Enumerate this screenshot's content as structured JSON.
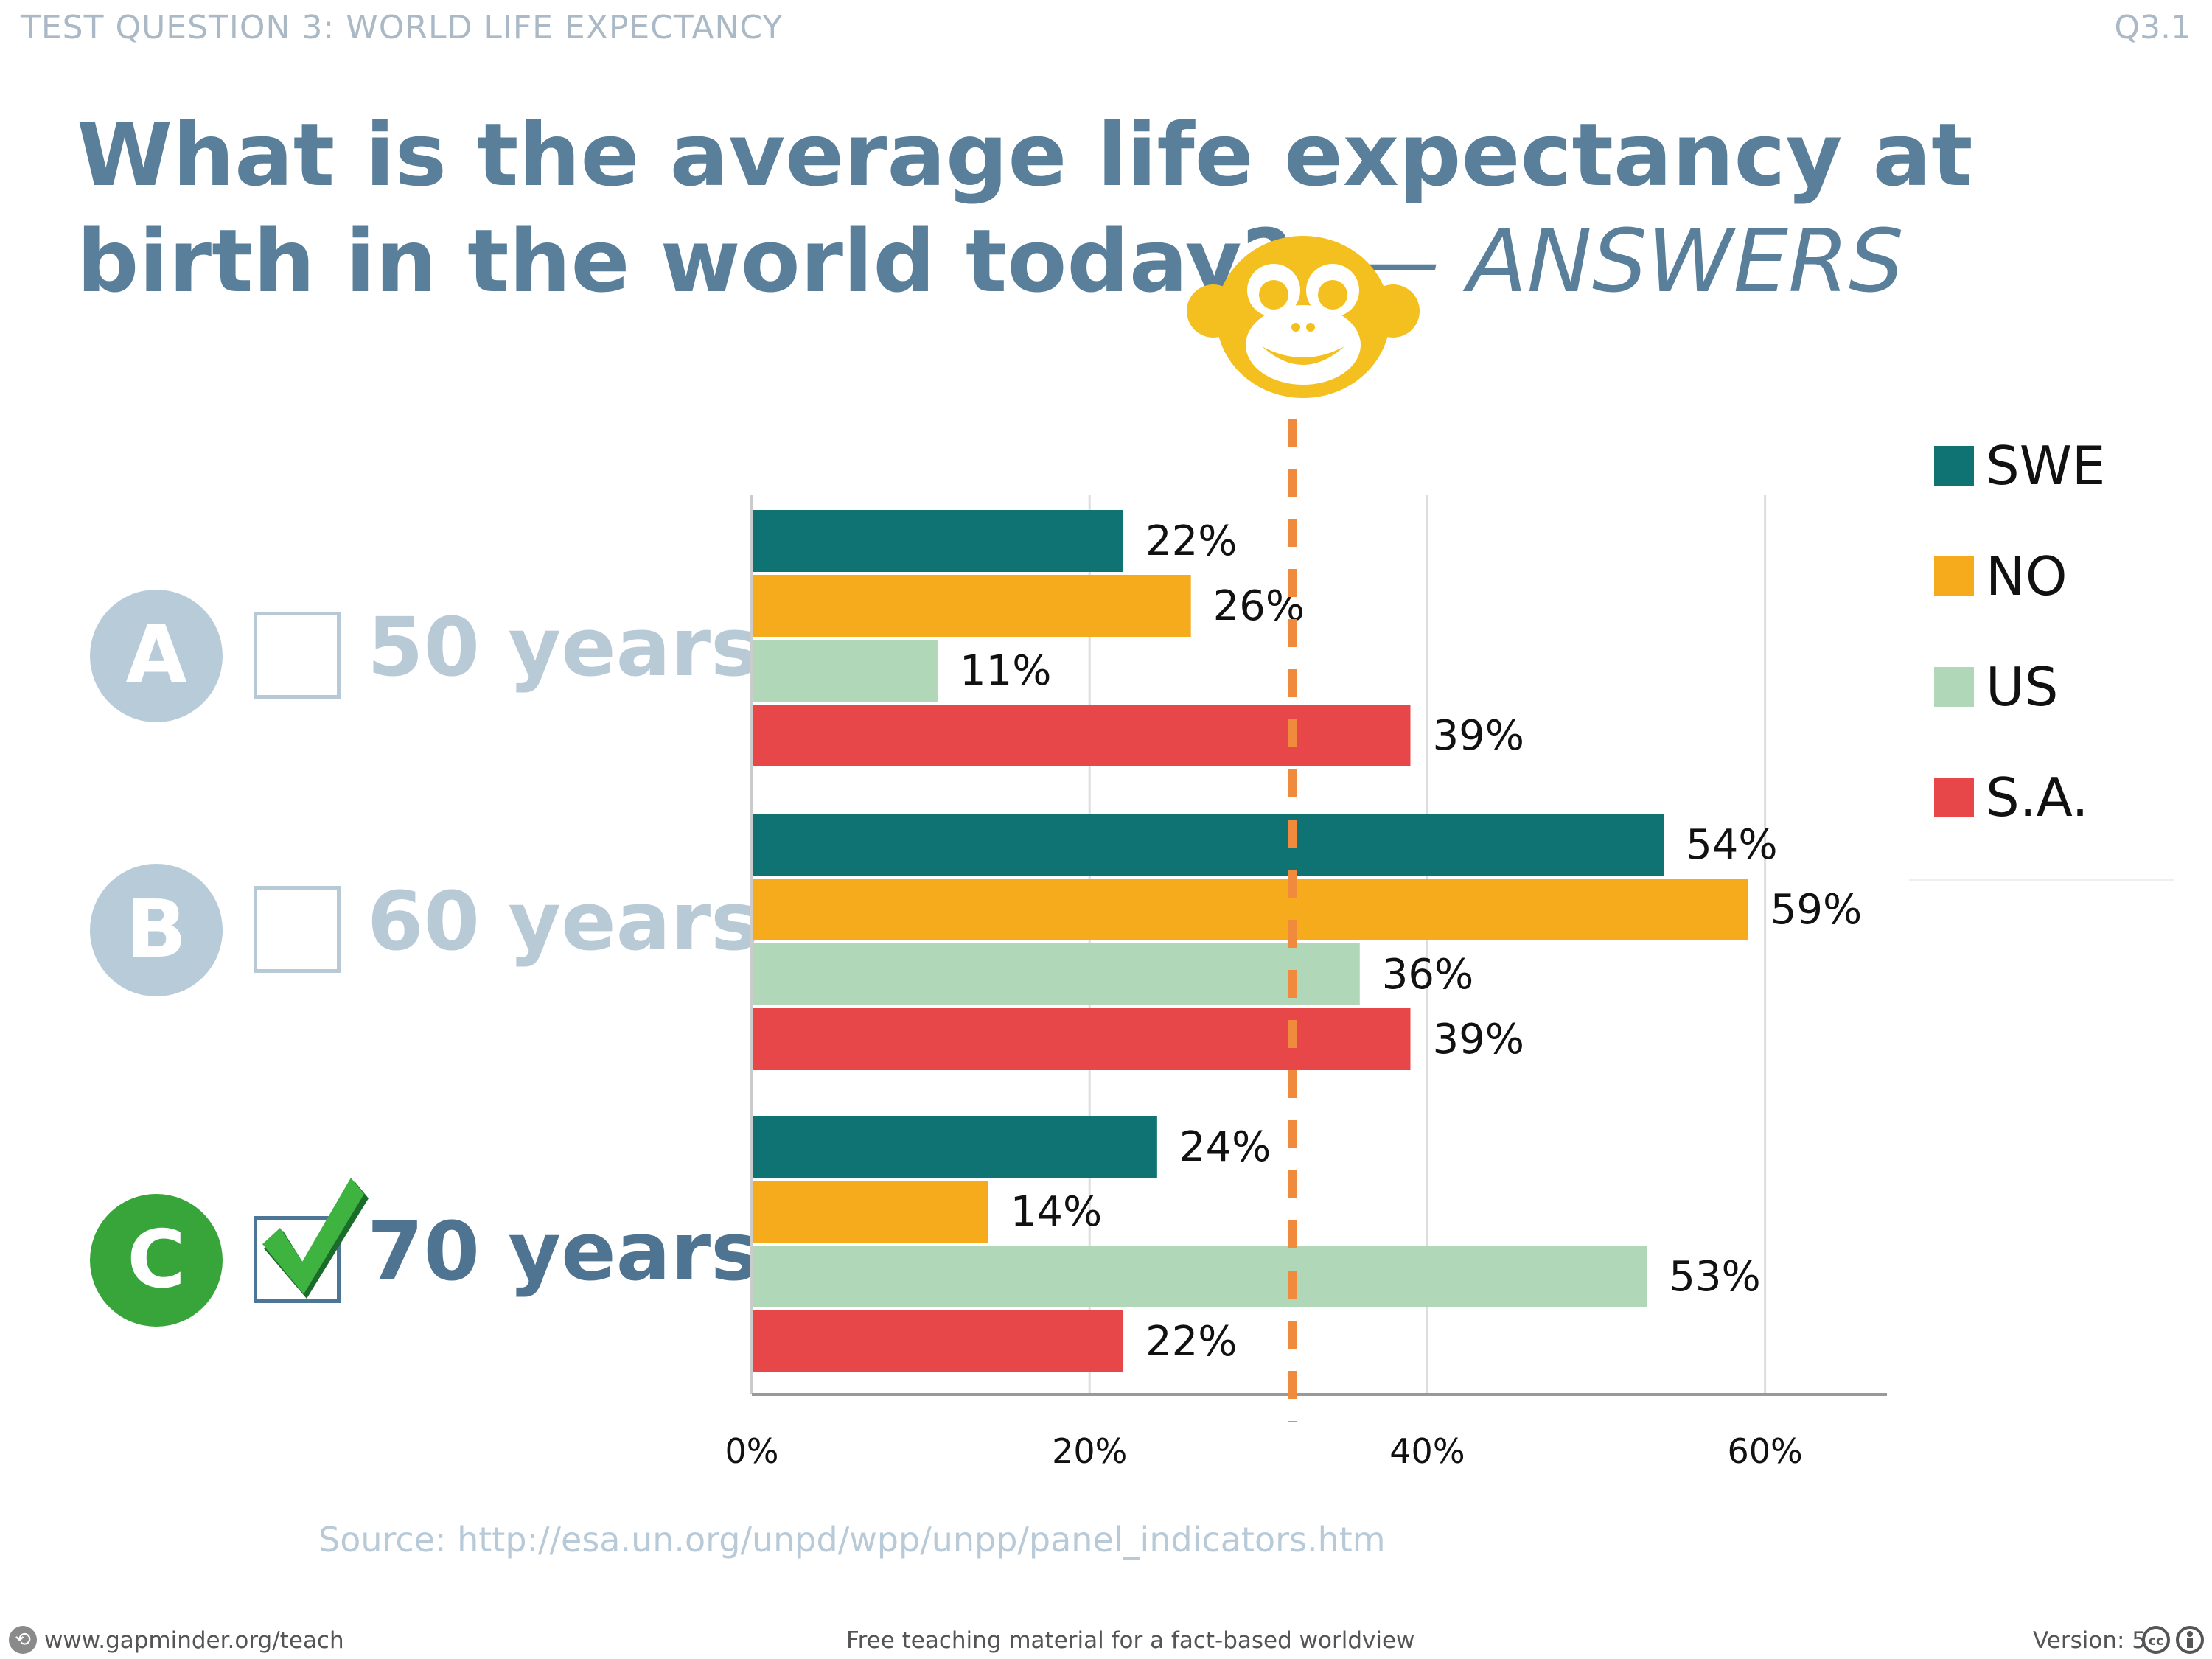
{
  "header": {
    "title": "TEST QUESTION 3: WORLD LIFE EXPECTANCY",
    "code": "Q3.1"
  },
  "title": {
    "main": "What is the average life expectancy at birth in the world today?",
    "suffix": "— ANSWERS"
  },
  "options": [
    {
      "letter": "A",
      "label": "50 years",
      "checked": false,
      "color": "#b8cbd9"
    },
    {
      "letter": "B",
      "label": "60 years",
      "checked": false,
      "color": "#b8cbd9"
    },
    {
      "letter": "C",
      "label": "70 years",
      "checked": true,
      "color": "#38a53a"
    }
  ],
  "source": "Source: http://esa.un.org/unpd/wpp/unpp/panel_indicators.htm",
  "footer": {
    "left": "www.gapminder.org/teach",
    "center": "Free teaching material for a fact-based worldview",
    "right": "Version: 5"
  },
  "chart_data": {
    "type": "bar",
    "orientation": "horizontal",
    "categories": [
      "50 years",
      "60 years",
      "70 years"
    ],
    "series": [
      {
        "name": "SWE",
        "color": "#0e7372",
        "values": [
          22,
          54,
          24
        ],
        "labels": [
          "22%",
          "54%",
          "24%"
        ]
      },
      {
        "name": "NO",
        "color": "#f5ab1c",
        "values": [
          26,
          59,
          14
        ],
        "labels": [
          "26%",
          "59%",
          "14%"
        ]
      },
      {
        "name": "US",
        "color": "#b0d8b8",
        "values": [
          11,
          36,
          53
        ],
        "labels": [
          "11%",
          "36%",
          "53%"
        ]
      },
      {
        "name": "S.A.",
        "color": "#e8474a",
        "values": [
          39,
          39,
          22
        ],
        "labels": [
          "39%",
          "39%",
          "22%"
        ]
      }
    ],
    "xticks": [
      "0%",
      "20%",
      "40%",
      "60%"
    ],
    "xlim": [
      0,
      67
    ],
    "reference_line": {
      "value": 32,
      "color": "#f08a3c",
      "style": "dashed"
    },
    "grid": true,
    "legend": "top-right"
  }
}
